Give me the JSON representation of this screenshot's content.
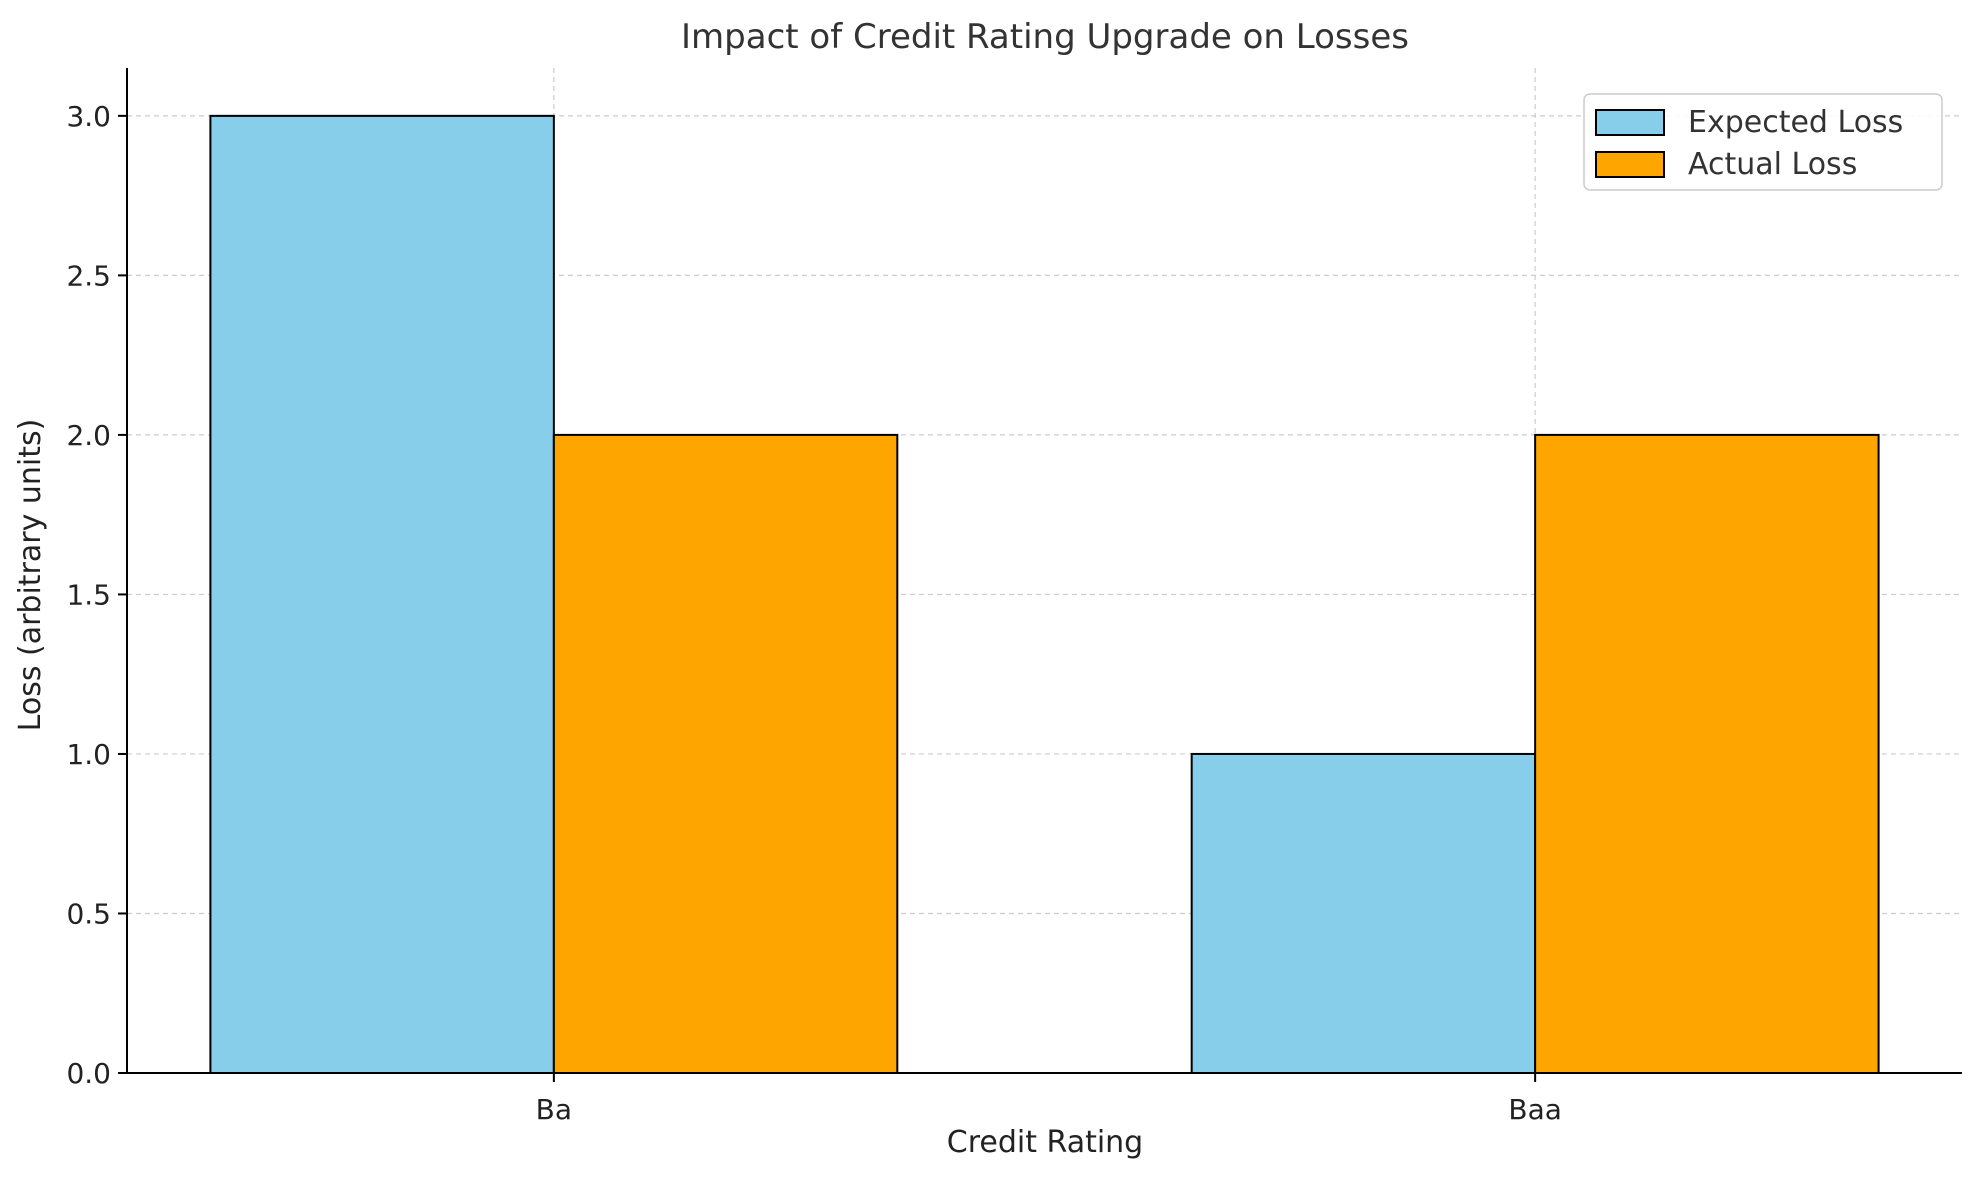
{
  "chart_data": {
    "type": "bar",
    "title": "Impact of Credit Rating Upgrade on Losses",
    "xlabel": "Credit Rating",
    "ylabel": "Loss (arbitrary units)",
    "categories": [
      "Ba",
      "Baa"
    ],
    "series": [
      {
        "name": "Expected Loss",
        "color": "#87CEEB",
        "values": [
          3,
          1
        ]
      },
      {
        "name": "Actual Loss",
        "color": "#FFA500",
        "values": [
          2,
          2
        ]
      }
    ],
    "ylim": [
      0,
      3.15
    ],
    "yticks": [
      0.0,
      0.5,
      1.0,
      1.5,
      2.0,
      2.5,
      3.0
    ],
    "ytick_labels": [
      "0.0",
      "0.5",
      "1.0",
      "1.5",
      "2.0",
      "2.5",
      "3.0"
    ],
    "grid": true,
    "legend_position": "top-right"
  }
}
